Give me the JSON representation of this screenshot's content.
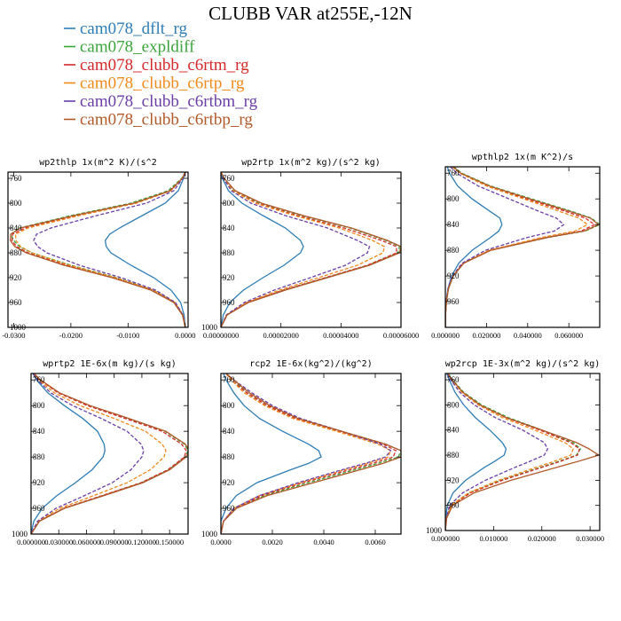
{
  "figure": {
    "title": "CLUBB VAR at255E,-12N"
  },
  "legend": [
    {
      "name": "cam078_dflt_rg",
      "color": "#2f7db5",
      "dash": "solid"
    },
    {
      "name": "cam078_expldiff",
      "color": "#3aa53a",
      "dash": "dash"
    },
    {
      "name": "cam078_clubb_c6rtm_rg",
      "color": "#d42a2a",
      "dash": "dash"
    },
    {
      "name": "cam078_clubb_c6rtp_rg",
      "color": "#f08a1c",
      "dash": "dash"
    },
    {
      "name": "cam078_clubb_c6rtbm_rg",
      "color": "#6a3fa6",
      "dash": "dash"
    },
    {
      "name": "cam078_clubb_c6rtbp_rg",
      "color": "#b2592a",
      "dash": "solid"
    }
  ],
  "chart_data": [
    {
      "type": "line",
      "title": "wp2thlp  1x(m^2 K)/(s^2",
      "y_ticks": [
        760,
        800,
        840,
        880,
        920,
        960,
        1000
      ],
      "ylim": [
        1000,
        750
      ],
      "xlim": [
        -0.031,
        0.0005
      ],
      "x_ticks": [
        -0.03,
        -0.02,
        -0.01,
        0.0
      ],
      "x_tick_labels": [
        "-0.0300",
        "-0.0200",
        "-0.0100",
        "0.0000"
      ],
      "pressure": [
        750,
        760,
        780,
        800,
        820,
        840,
        850,
        860,
        870,
        880,
        900,
        920,
        940,
        960,
        980,
        1000
      ],
      "series": [
        {
          "values": [
            0.0,
            -0.0003,
            -0.0012,
            -0.0035,
            -0.0075,
            -0.0115,
            -0.0132,
            -0.014,
            -0.0138,
            -0.013,
            -0.0095,
            -0.0055,
            -0.0025,
            -0.0008,
            -0.0002,
            0.0
          ]
        },
        {
          "values": [
            0.0,
            -0.0006,
            -0.003,
            -0.0095,
            -0.02,
            -0.029,
            -0.0305,
            -0.03,
            -0.029,
            -0.0268,
            -0.02,
            -0.012,
            -0.0055,
            -0.0018,
            -0.0004,
            0.0
          ]
        },
        {
          "values": [
            0.0,
            -0.0005,
            -0.0027,
            -0.0088,
            -0.019,
            -0.028,
            -0.0302,
            -0.0303,
            -0.0295,
            -0.0275,
            -0.0208,
            -0.0125,
            -0.0058,
            -0.0019,
            -0.0004,
            0.0
          ]
        },
        {
          "values": [
            0.0,
            -0.0005,
            -0.0025,
            -0.0085,
            -0.0185,
            -0.0275,
            -0.0297,
            -0.0296,
            -0.0288,
            -0.0268,
            -0.0202,
            -0.0122,
            -0.0056,
            -0.0018,
            -0.0004,
            0.0
          ]
        },
        {
          "values": [
            0.0,
            -0.0004,
            -0.002,
            -0.0068,
            -0.0155,
            -0.0235,
            -0.026,
            -0.0265,
            -0.0258,
            -0.0242,
            -0.0185,
            -0.0112,
            -0.0052,
            -0.0017,
            -0.0004,
            0.0
          ]
        },
        {
          "values": [
            0.0,
            -0.0005,
            -0.0026,
            -0.009,
            -0.0195,
            -0.0288,
            -0.0305,
            -0.0306,
            -0.0298,
            -0.0278,
            -0.0212,
            -0.0128,
            -0.006,
            -0.002,
            -0.0005,
            0.0
          ]
        }
      ]
    },
    {
      "type": "line",
      "title": "wp2rtp  1x(m^2 kg)/(s^2 kg)",
      "y_ticks": [
        760,
        800,
        840,
        880,
        920,
        960,
        1000
      ],
      "ylim": [
        1000,
        750
      ],
      "xlim": [
        0.0,
        6e-05
      ],
      "x_ticks": [
        0.0,
        2e-05,
        4e-05,
        6e-05
      ],
      "x_tick_labels": [
        "0.00000000",
        "0.00002000",
        "0.00004000",
        "0.00006000"
      ],
      "pressure": [
        750,
        760,
        780,
        800,
        820,
        840,
        860,
        870,
        880,
        900,
        920,
        940,
        960,
        980,
        1000
      ],
      "series": [
        {
          "values": [
            0.0,
            5e-07,
            2.5e-06,
            7e-06,
            1.4e-05,
            2.15e-05,
            2.65e-05,
            2.75e-05,
            2.65e-05,
            2.1e-05,
            1.4e-05,
            7.5e-06,
            3e-06,
            8e-07,
            0.0
          ]
        },
        {
          "values": [
            0.0,
            1e-06,
            4.5e-06,
            1.3e-05,
            2.7e-05,
            4.3e-05,
            5.5e-05,
            5.95e-05,
            5.9e-05,
            4.9e-05,
            3.5e-05,
            2.1e-05,
            9e-06,
            2e-06,
            0.0
          ]
        },
        {
          "values": [
            0.0,
            1e-06,
            4e-06,
            1.2e-05,
            2.55e-05,
            4.1e-05,
            5.35e-05,
            5.85e-05,
            5.85e-05,
            4.88e-05,
            3.48e-05,
            2.08e-05,
            8.9e-06,
            2e-06,
            0.0
          ]
        },
        {
          "values": [
            0.0,
            9e-07,
            4e-06,
            1.15e-05,
            2.45e-05,
            3.95e-05,
            5.05e-05,
            5.45e-05,
            5.4e-05,
            4.55e-05,
            3.25e-05,
            1.95e-05,
            8.4e-06,
            1.9e-06,
            0.0
          ]
        },
        {
          "values": [
            0.0,
            8e-07,
            3.5e-06,
            1e-05,
            2.15e-05,
            3.55e-05,
            4.55e-05,
            4.95e-05,
            4.88e-05,
            4.15e-05,
            2.98e-05,
            1.78e-05,
            7.8e-06,
            1.8e-06,
            0.0
          ]
        },
        {
          "values": [
            0.0,
            1.1e-06,
            4.8e-06,
            1.35e-05,
            2.75e-05,
            4.35e-05,
            5.55e-05,
            6e-05,
            5.95e-05,
            4.95e-05,
            3.55e-05,
            2.15e-05,
            9.2e-06,
            2.1e-06,
            0.0
          ]
        }
      ]
    },
    {
      "type": "line",
      "title": "wpthlp2  1x(m K^2)/s",
      "y_ticks": [
        760,
        800,
        840,
        880,
        920,
        960
      ],
      "ylim": [
        1000,
        750
      ],
      "xlim": [
        0.0,
        0.075
      ],
      "x_ticks": [
        0.0,
        0.02,
        0.04,
        0.06
      ],
      "x_tick_labels": [
        "0.000000",
        "0.020000",
        "0.040000",
        "0.060000"
      ],
      "pressure": [
        750,
        760,
        780,
        800,
        820,
        830,
        840,
        850,
        860,
        880,
        900,
        920,
        940,
        960,
        980,
        1000
      ],
      "series": [
        {
          "values": [
            0.001,
            0.002,
            0.006,
            0.013,
            0.022,
            0.0265,
            0.0275,
            0.026,
            0.022,
            0.013,
            0.0065,
            0.003,
            0.0012,
            0.0004,
            0.0001,
            0.0
          ]
        },
        {
          "values": [
            0.004,
            0.008,
            0.022,
            0.042,
            0.062,
            0.071,
            0.075,
            0.068,
            0.05,
            0.022,
            0.009,
            0.0038,
            0.0015,
            0.0005,
            0.0001,
            0.0
          ]
        },
        {
          "values": [
            0.0035,
            0.0072,
            0.0205,
            0.0395,
            0.059,
            0.068,
            0.0725,
            0.066,
            0.049,
            0.0218,
            0.0088,
            0.0037,
            0.0014,
            0.0005,
            0.0001,
            0.0
          ]
        },
        {
          "values": [
            0.0035,
            0.007,
            0.02,
            0.038,
            0.056,
            0.065,
            0.069,
            0.063,
            0.047,
            0.0212,
            0.0086,
            0.0036,
            0.0014,
            0.0005,
            0.0001,
            0.0
          ]
        },
        {
          "values": [
            0.0025,
            0.0055,
            0.016,
            0.031,
            0.046,
            0.054,
            0.0575,
            0.053,
            0.04,
            0.0195,
            0.0082,
            0.0034,
            0.0013,
            0.0004,
            0.0001,
            0.0
          ]
        },
        {
          "values": [
            0.0038,
            0.0075,
            0.0215,
            0.041,
            0.061,
            0.0705,
            0.0745,
            0.0675,
            0.0498,
            0.0222,
            0.009,
            0.0038,
            0.0015,
            0.0005,
            0.0001,
            0.0
          ]
        }
      ]
    },
    {
      "type": "line",
      "title": "wprtp2  1E-6x(m kg)/(s kg)",
      "y_ticks": [
        760,
        800,
        840,
        880,
        920,
        960,
        1000
      ],
      "ylim": [
        1000,
        750
      ],
      "xlim": [
        0.0,
        0.17
      ],
      "x_ticks": [
        0.0,
        0.03,
        0.06,
        0.09,
        0.12,
        0.15
      ],
      "x_tick_labels": [
        "0.000000",
        "0.030000",
        "0.060000",
        "0.090000",
        "0.120000",
        "0.150000"
      ],
      "pressure": [
        750,
        760,
        780,
        800,
        820,
        840,
        860,
        870,
        880,
        900,
        920,
        940,
        960,
        980,
        1000
      ],
      "series": [
        {
          "values": [
            0.002,
            0.006,
            0.018,
            0.036,
            0.056,
            0.072,
            0.079,
            0.08,
            0.078,
            0.066,
            0.048,
            0.028,
            0.012,
            0.003,
            0.0
          ]
        },
        {
          "values": [
            0.003,
            0.01,
            0.03,
            0.063,
            0.105,
            0.145,
            0.166,
            0.17,
            0.167,
            0.149,
            0.12,
            0.078,
            0.036,
            0.009,
            0.0
          ]
        },
        {
          "values": [
            0.003,
            0.0095,
            0.029,
            0.061,
            0.102,
            0.142,
            0.163,
            0.168,
            0.166,
            0.148,
            0.119,
            0.077,
            0.035,
            0.009,
            0.0
          ]
        },
        {
          "values": [
            0.0025,
            0.008,
            0.025,
            0.053,
            0.09,
            0.124,
            0.142,
            0.146,
            0.144,
            0.129,
            0.104,
            0.068,
            0.031,
            0.008,
            0.0
          ]
        },
        {
          "values": [
            0.002,
            0.007,
            0.021,
            0.045,
            0.076,
            0.104,
            0.119,
            0.122,
            0.12,
            0.108,
            0.088,
            0.058,
            0.027,
            0.007,
            0.0
          ]
        },
        {
          "values": [
            0.0032,
            0.0102,
            0.0305,
            0.064,
            0.106,
            0.146,
            0.167,
            0.171,
            0.168,
            0.15,
            0.121,
            0.079,
            0.036,
            0.009,
            0.0
          ]
        }
      ]
    },
    {
      "type": "line",
      "title": "rcp2  1E-6x(kg^2)/(kg^2)",
      "y_ticks": [
        760,
        800,
        840,
        880,
        920,
        960,
        1000
      ],
      "ylim": [
        1000,
        750
      ],
      "xlim": [
        0.0,
        0.007
      ],
      "x_ticks": [
        0.0,
        0.002,
        0.004,
        0.006
      ],
      "x_tick_labels": [
        "0.0000",
        "0.0020",
        "0.0040",
        "0.0060"
      ],
      "pressure": [
        750,
        760,
        780,
        800,
        820,
        840,
        860,
        870,
        880,
        890,
        900,
        920,
        940,
        960,
        980,
        1000
      ],
      "series": [
        {
          "values": [
            0.0001,
            0.0002,
            0.0005,
            0.0009,
            0.0015,
            0.0024,
            0.0034,
            0.0038,
            0.0039,
            0.0034,
            0.0027,
            0.0014,
            0.0006,
            0.0002,
            0.0,
            0.0
          ]
        },
        {
          "values": [
            0.0002,
            0.0005,
            0.001,
            0.0018,
            0.003,
            0.0047,
            0.0064,
            0.007,
            0.0069,
            0.0061,
            0.0052,
            0.0034,
            0.0017,
            0.0006,
            0.0001,
            0.0
          ]
        },
        {
          "values": [
            0.0002,
            0.0004,
            0.001,
            0.0018,
            0.0029,
            0.0046,
            0.0063,
            0.0068,
            0.0067,
            0.0059,
            0.005,
            0.0032,
            0.0016,
            0.0006,
            0.0001,
            0.0
          ]
        },
        {
          "values": [
            0.0002,
            0.0004,
            0.0009,
            0.0017,
            0.0028,
            0.0045,
            0.0061,
            0.0066,
            0.0065,
            0.0057,
            0.0048,
            0.0031,
            0.0015,
            0.0005,
            0.0001,
            0.0
          ]
        },
        {
          "values": [
            0.0002,
            0.0005,
            0.0012,
            0.002,
            0.0031,
            0.0047,
            0.0062,
            0.0066,
            0.0064,
            0.0056,
            0.0047,
            0.003,
            0.0015,
            0.0005,
            0.0001,
            0.0
          ]
        },
        {
          "values": [
            0.0002,
            0.0005,
            0.0011,
            0.0019,
            0.003,
            0.0047,
            0.0064,
            0.007,
            0.007,
            0.0063,
            0.0054,
            0.0036,
            0.0018,
            0.0006,
            0.0001,
            0.0
          ]
        }
      ]
    },
    {
      "type": "line",
      "title": "wp2rcp  1E-3x(m^2 kg)/(s^2 kg)",
      "y_ticks": [
        760,
        800,
        840,
        880,
        920,
        960,
        1000
      ],
      "ylim": [
        1000,
        750
      ],
      "xlim": [
        0.0,
        0.032
      ],
      "x_ticks": [
        0.0,
        0.01,
        0.02,
        0.03
      ],
      "x_tick_labels": [
        "0.000000",
        "0.010000",
        "0.020000",
        "0.030000"
      ],
      "pressure": [
        750,
        760,
        780,
        800,
        820,
        840,
        860,
        870,
        880,
        890,
        900,
        920,
        940,
        960,
        980,
        1000
      ],
      "series": [
        {
          "values": [
            0.0003,
            0.0008,
            0.002,
            0.0038,
            0.0062,
            0.0092,
            0.0118,
            0.0126,
            0.0122,
            0.0102,
            0.008,
            0.0042,
            0.0016,
            0.0004,
            0.0001,
            0.0
          ]
        },
        {
          "values": [
            0.0006,
            0.0015,
            0.0038,
            0.0075,
            0.013,
            0.02,
            0.0265,
            0.028,
            0.0272,
            0.0235,
            0.0195,
            0.0115,
            0.005,
            0.0012,
            0.0002,
            0.0
          ]
        },
        {
          "values": [
            0.0005,
            0.0014,
            0.0036,
            0.0072,
            0.0125,
            0.0195,
            0.026,
            0.0278,
            0.0274,
            0.0238,
            0.0198,
            0.0118,
            0.0052,
            0.0013,
            0.0002,
            0.0
          ]
        },
        {
          "values": [
            0.0005,
            0.0013,
            0.0034,
            0.0068,
            0.0118,
            0.0185,
            0.0248,
            0.0265,
            0.026,
            0.0225,
            0.0186,
            0.011,
            0.0048,
            0.0012,
            0.0002,
            0.0
          ]
        },
        {
          "values": [
            0.0004,
            0.0011,
            0.003,
            0.006,
            0.0103,
            0.016,
            0.0205,
            0.0212,
            0.0205,
            0.0175,
            0.0143,
            0.0083,
            0.0036,
            0.0009,
            0.0002,
            0.0
          ]
        },
        {
          "values": [
            0.0005,
            0.0014,
            0.0036,
            0.0072,
            0.0126,
            0.02,
            0.0272,
            0.0298,
            0.0318,
            0.0275,
            0.0228,
            0.0136,
            0.006,
            0.0015,
            0.0003,
            0.0
          ]
        }
      ]
    }
  ]
}
